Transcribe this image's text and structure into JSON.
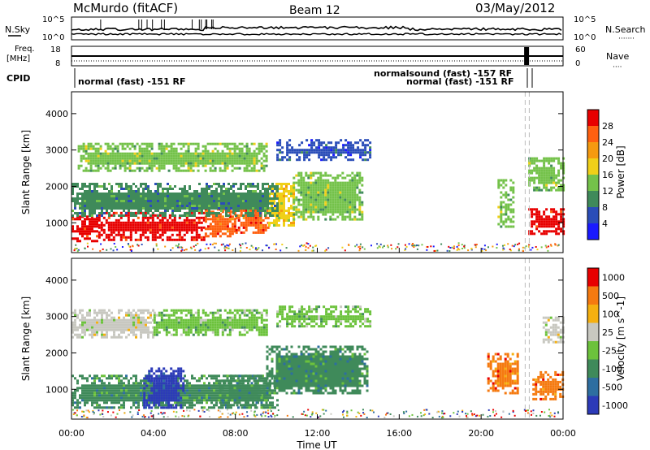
{
  "header": {
    "station": "McMurdo (fitACF)",
    "beam": "Beam 12",
    "date": "03/May/2012"
  },
  "top_panel": {
    "left_label": "N.Sky",
    "right_label": "N.Search",
    "y_ticks_left": [
      "10^5",
      "10^0"
    ],
    "y_ticks_right": [
      "10^5",
      "10^0"
    ]
  },
  "freq_panel": {
    "left_label_line1": "Freq.",
    "left_label_line2": "[MHz]",
    "right_label": "Nave",
    "y_ticks_left": [
      "18",
      "8"
    ],
    "y_ticks_right": [
      "60",
      "0"
    ]
  },
  "cpid_panel": {
    "label": "CPID",
    "mode1": "normal (fast) -151 RF",
    "mode2": "normalsound (fast) -157 RF",
    "mode3": "normal (fast) -151 RF"
  },
  "x_axis": {
    "label": "Time UT",
    "ticks": [
      "00:00",
      "04:00",
      "08:00",
      "12:00",
      "16:00",
      "20:00",
      "00:00"
    ]
  },
  "chart_data": [
    {
      "type": "heatmap",
      "title": "",
      "xlabel": "Time UT",
      "ylabel": "Slant Range [km]",
      "x_range_hours": [
        0,
        24
      ],
      "ylim": [
        180,
        4600
      ],
      "y_ticks": [
        "1000",
        "2000",
        "3000",
        "4000"
      ],
      "colorbar": {
        "label": "Power [dB]",
        "ticks": [
          "4",
          "8",
          "12",
          "16",
          "20",
          "24",
          "28"
        ],
        "colors": [
          "#1a1aff",
          "#2a4db8",
          "#3f8a5a",
          "#74c24a",
          "#f0d018",
          "#f59a10",
          "#ff6010",
          "#e80000"
        ]
      },
      "regions": [
        {
          "t": [
            0.0,
            1.3
          ],
          "r": [
            500,
            1200
          ],
          "level": 7
        },
        {
          "t": [
            1.3,
            6.5
          ],
          "r": [
            550,
            1300
          ],
          "level": 7
        },
        {
          "t": [
            6.5,
            8.0
          ],
          "r": [
            600,
            1400
          ],
          "level": 6
        },
        {
          "t": [
            8.0,
            9.6
          ],
          "r": [
            700,
            1700
          ],
          "level": 6
        },
        {
          "t": [
            9.6,
            10.8
          ],
          "r": [
            900,
            2100
          ],
          "level": 4
        },
        {
          "t": [
            10.8,
            14.2
          ],
          "r": [
            1100,
            2400
          ],
          "level": 3
        },
        {
          "t": [
            0.0,
            10.0
          ],
          "r": [
            1200,
            2100
          ],
          "level": 2
        },
        {
          "t": [
            0.3,
            9.5
          ],
          "r": [
            2400,
            3200
          ],
          "level": 3
        },
        {
          "t": [
            10.0,
            14.6
          ],
          "r": [
            2700,
            3300
          ],
          "level": 1
        },
        {
          "t": [
            20.8,
            21.6
          ],
          "r": [
            900,
            2200
          ],
          "level": 3
        },
        {
          "t": [
            22.3,
            24.0
          ],
          "r": [
            700,
            1400
          ],
          "level": 7
        },
        {
          "t": [
            22.3,
            24.0
          ],
          "r": [
            1900,
            2800
          ],
          "level": 3
        }
      ]
    },
    {
      "type": "heatmap",
      "title": "",
      "xlabel": "Time UT",
      "ylabel": "Slant Range [km]",
      "x_range_hours": [
        0,
        24
      ],
      "ylim": [
        180,
        4600
      ],
      "y_ticks": [
        "1000",
        "2000",
        "3000",
        "4000"
      ],
      "colorbar": {
        "label": "Velocity [m s^-1]",
        "ticks": [
          "1000",
          "500",
          "100",
          "25",
          "-25",
          "-100",
          "-500",
          "-1000"
        ],
        "colors": [
          "#2c3ab8",
          "#2e6ea0",
          "#3f8a5a",
          "#6cc23c",
          "#c8c8c0",
          "#f5b010",
          "#f57a10",
          "#e80000"
        ]
      },
      "regions": [
        {
          "t": [
            0.0,
            10.0
          ],
          "r": [
            500,
            1400
          ],
          "level": 2
        },
        {
          "t": [
            3.5,
            5.5
          ],
          "r": [
            500,
            1600
          ],
          "level": 0
        },
        {
          "t": [
            7.2,
            9.5
          ],
          "r": [
            500,
            1400
          ],
          "level": 2
        },
        {
          "t": [
            9.5,
            14.4
          ],
          "r": [
            900,
            2200
          ],
          "level": 2
        },
        {
          "t": [
            0.0,
            4.0
          ],
          "r": [
            2400,
            3200
          ],
          "level": 4
        },
        {
          "t": [
            4.0,
            9.5
          ],
          "r": [
            2500,
            3200
          ],
          "level": 3
        },
        {
          "t": [
            10.0,
            14.6
          ],
          "r": [
            2700,
            3300
          ],
          "level": 3
        },
        {
          "t": [
            20.3,
            21.8
          ],
          "r": [
            900,
            2000
          ],
          "level": 6
        },
        {
          "t": [
            22.5,
            24.0
          ],
          "r": [
            700,
            1500
          ],
          "level": 6
        },
        {
          "t": [
            23.0,
            24.0
          ],
          "r": [
            2300,
            3000
          ],
          "level": 4
        }
      ]
    }
  ]
}
